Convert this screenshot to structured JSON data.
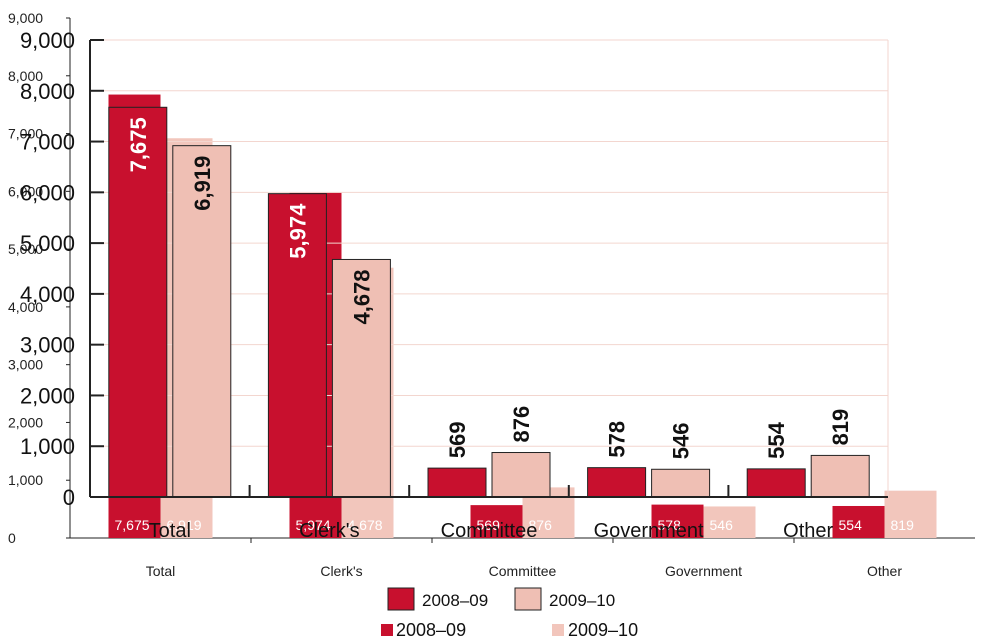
{
  "chart_data": {
    "type": "bar",
    "categories": [
      "Total",
      "Clerk's",
      "Committee",
      "Government",
      "Other"
    ],
    "series": [
      {
        "name": "2008–09",
        "values": [
          7675,
          5974,
          569,
          578,
          554
        ]
      },
      {
        "name": "2009–10",
        "values": [
          6919,
          4678,
          876,
          546,
          819
        ]
      }
    ],
    "value_labels": [
      [
        "7,675",
        "5,974",
        "569",
        "578",
        "554"
      ],
      [
        "6,919",
        "4,678",
        "876",
        "546",
        "819"
      ]
    ],
    "ylim": [
      0,
      9000
    ],
    "yticks": [
      "0",
      "1,000",
      "2,000",
      "3,000",
      "4,000",
      "5,000",
      "6,000",
      "7,000",
      "8,000",
      "9,000"
    ],
    "legend": [
      "2008–09",
      "2009–10"
    ],
    "legend_position": "bottom",
    "grid": true
  },
  "colors": {
    "series_2008_09": "#c8102e",
    "series_2009_10": "#efbfb4",
    "back_series_2009_10": "#f2c6bc",
    "grid": "#f3d6cf",
    "axis": "#222222"
  }
}
